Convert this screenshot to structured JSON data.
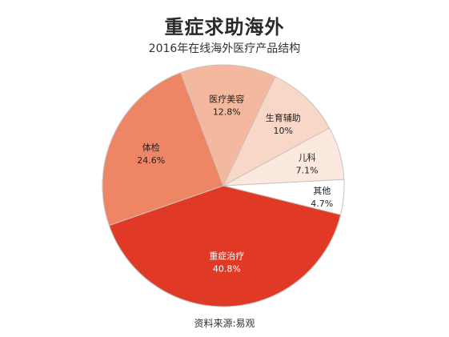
{
  "chart_data": {
    "type": "pie",
    "title": "重症求助海外",
    "subtitle": "2016年在线海外医疗产品结构",
    "source": "资料来源:易观",
    "slices": [
      {
        "label": "重症治疗",
        "value": 40.8,
        "display": "40.8%",
        "color": "#e03a27",
        "text_color": "#ffffff"
      },
      {
        "label": "体检",
        "value": 24.6,
        "display": "24.6%",
        "color": "#ee8565",
        "text_color": "#222222"
      },
      {
        "label": "医疗美容",
        "value": 12.8,
        "display": "12.8%",
        "color": "#f3b89d",
        "text_color": "#222222"
      },
      {
        "label": "生育辅助",
        "value": 10,
        "display": "10%",
        "color": "#f8d7c7",
        "text_color": "#222222"
      },
      {
        "label": "儿科",
        "value": 7.1,
        "display": "7.1%",
        "color": "#fbe8df",
        "text_color": "#222222"
      },
      {
        "label": "其他",
        "value": 4.7,
        "display": "4.7%",
        "color": "#ffffff",
        "text_color": "#222222"
      }
    ]
  }
}
